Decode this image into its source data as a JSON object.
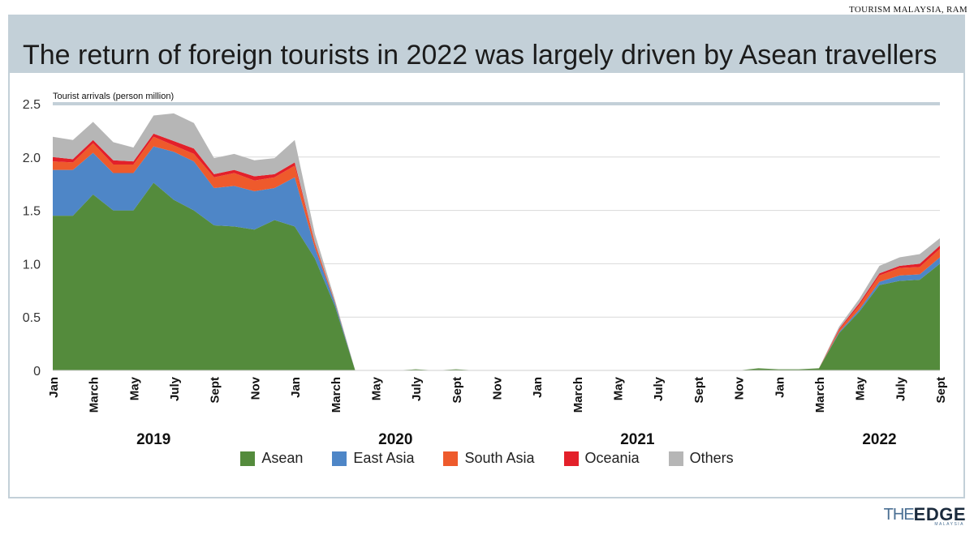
{
  "source": "TOURISM MALAYSIA, RAM",
  "title": "The return of foreign tourists in 2022 was largely driven by Asean travellers",
  "logo": {
    "the": "THE",
    "edge": "EDGE",
    "sub": "MALAYSIA"
  },
  "chart_data": {
    "type": "area",
    "stacked": true,
    "ylabel": "Tourist arrivals (person million)",
    "ylim": [
      0,
      2.5
    ],
    "yticks": [
      0,
      0.5,
      1.0,
      1.5,
      2.0,
      2.5
    ],
    "ytick_labels": [
      "0",
      "0.5",
      "1.0",
      "1.5",
      "2.0",
      "2.5"
    ],
    "grid": true,
    "legend": "bottom",
    "x": [
      "2019-01",
      "2019-02",
      "2019-03",
      "2019-04",
      "2019-05",
      "2019-06",
      "2019-07",
      "2019-08",
      "2019-09",
      "2019-10",
      "2019-11",
      "2019-12",
      "2020-01",
      "2020-02",
      "2020-03",
      "2020-04",
      "2020-05",
      "2020-06",
      "2020-07",
      "2020-08",
      "2020-09",
      "2020-10",
      "2020-11",
      "2020-12",
      "2021-01",
      "2021-02",
      "2021-03",
      "2021-04",
      "2021-05",
      "2021-06",
      "2021-07",
      "2021-08",
      "2021-09",
      "2021-10",
      "2021-11",
      "2021-12",
      "2022-01",
      "2022-02",
      "2022-03",
      "2022-04",
      "2022-05",
      "2022-06",
      "2022-07",
      "2022-08",
      "2022-09"
    ],
    "tick_labels": [
      {
        "i": 0,
        "label": "Jan"
      },
      {
        "i": 2,
        "label": "March"
      },
      {
        "i": 4,
        "label": "May"
      },
      {
        "i": 6,
        "label": "July"
      },
      {
        "i": 8,
        "label": "Sept"
      },
      {
        "i": 10,
        "label": "Nov"
      },
      {
        "i": 12,
        "label": "Jan"
      },
      {
        "i": 14,
        "label": "March"
      },
      {
        "i": 16,
        "label": "May"
      },
      {
        "i": 18,
        "label": "July"
      },
      {
        "i": 20,
        "label": "Sept"
      },
      {
        "i": 22,
        "label": "Nov"
      },
      {
        "i": 24,
        "label": "Jan"
      },
      {
        "i": 26,
        "label": "March"
      },
      {
        "i": 28,
        "label": "May"
      },
      {
        "i": 30,
        "label": "July"
      },
      {
        "i": 32,
        "label": "Sept"
      },
      {
        "i": 34,
        "label": "Nov"
      },
      {
        "i": 36,
        "label": "Jan"
      },
      {
        "i": 38,
        "label": "March"
      },
      {
        "i": 40,
        "label": "May"
      },
      {
        "i": 42,
        "label": "July"
      },
      {
        "i": 44,
        "label": "Sept"
      }
    ],
    "year_labels": [
      {
        "center_i": 5,
        "label": "2019"
      },
      {
        "center_i": 17,
        "label": "2020"
      },
      {
        "center_i": 29,
        "label": "2021"
      },
      {
        "center_i": 41,
        "label": "2022"
      }
    ],
    "series": [
      {
        "name": "Asean",
        "color": "#548b3c",
        "values": [
          1.45,
          1.45,
          1.65,
          1.5,
          1.5,
          1.76,
          1.6,
          1.5,
          1.36,
          1.35,
          1.32,
          1.41,
          1.35,
          1.05,
          0.6,
          0.0,
          0.0,
          0.0,
          0.01,
          0.0,
          0.01,
          0.0,
          0.0,
          0.0,
          0.0,
          0.0,
          0.0,
          0.0,
          0.0,
          0.0,
          0.0,
          0.0,
          0.0,
          0.0,
          0.0,
          0.02,
          0.01,
          0.01,
          0.02,
          0.35,
          0.55,
          0.8,
          0.84,
          0.85,
          1.0
        ]
      },
      {
        "name": "East Asia",
        "color": "#4e86c7",
        "values": [
          0.43,
          0.43,
          0.39,
          0.35,
          0.35,
          0.34,
          0.45,
          0.46,
          0.35,
          0.38,
          0.36,
          0.3,
          0.46,
          0.1,
          0.03,
          0.0,
          0.0,
          0.0,
          0.0,
          0.0,
          0.0,
          0.0,
          0.0,
          0.0,
          0.0,
          0.0,
          0.0,
          0.0,
          0.0,
          0.0,
          0.0,
          0.0,
          0.0,
          0.0,
          0.0,
          0.0,
          0.0,
          0.0,
          0.0,
          0.01,
          0.02,
          0.03,
          0.05,
          0.05,
          0.06
        ]
      },
      {
        "name": "South Asia",
        "color": "#ee5a2c",
        "values": [
          0.08,
          0.07,
          0.09,
          0.08,
          0.08,
          0.09,
          0.06,
          0.07,
          0.1,
          0.12,
          0.1,
          0.1,
          0.11,
          0.04,
          0.01,
          0.0,
          0.0,
          0.0,
          0.0,
          0.0,
          0.0,
          0.0,
          0.0,
          0.0,
          0.0,
          0.0,
          0.0,
          0.0,
          0.0,
          0.0,
          0.0,
          0.0,
          0.0,
          0.0,
          0.0,
          0.0,
          0.0,
          0.0,
          0.0,
          0.02,
          0.04,
          0.06,
          0.07,
          0.07,
          0.08
        ]
      },
      {
        "name": "Oceania",
        "color": "#e3202a",
        "values": [
          0.04,
          0.03,
          0.03,
          0.04,
          0.03,
          0.03,
          0.04,
          0.05,
          0.03,
          0.03,
          0.04,
          0.03,
          0.03,
          0.01,
          0.0,
          0.0,
          0.0,
          0.0,
          0.0,
          0.0,
          0.0,
          0.0,
          0.0,
          0.0,
          0.0,
          0.0,
          0.0,
          0.0,
          0.0,
          0.0,
          0.0,
          0.0,
          0.0,
          0.0,
          0.0,
          0.0,
          0.0,
          0.0,
          0.0,
          0.01,
          0.02,
          0.02,
          0.02,
          0.03,
          0.03
        ]
      },
      {
        "name": "Others",
        "color": "#b6b6b6",
        "values": [
          0.19,
          0.18,
          0.17,
          0.17,
          0.13,
          0.17,
          0.26,
          0.24,
          0.15,
          0.15,
          0.15,
          0.15,
          0.21,
          0.08,
          0.02,
          0.0,
          0.0,
          0.0,
          0.0,
          0.0,
          0.0,
          0.0,
          0.0,
          0.0,
          0.0,
          0.0,
          0.0,
          0.0,
          0.0,
          0.0,
          0.0,
          0.0,
          0.0,
          0.0,
          0.0,
          0.0,
          0.0,
          0.0,
          0.0,
          0.02,
          0.04,
          0.07,
          0.08,
          0.09,
          0.07
        ]
      }
    ]
  }
}
